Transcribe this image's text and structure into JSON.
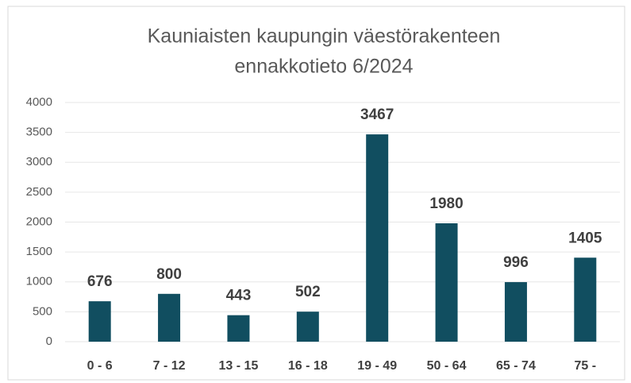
{
  "chart_data": {
    "type": "bar",
    "title": [
      "Kauniaisten kaupungin väestörakenteen",
      "ennakkotieto 6/2024"
    ],
    "categories": [
      "0 - 6",
      "7 - 12",
      "13 - 15",
      "16 - 18",
      "19 - 49",
      "50 - 64",
      "65 - 74",
      "75 -"
    ],
    "values": [
      676,
      800,
      443,
      502,
      3467,
      1980,
      996,
      1405
    ],
    "color": "#114e60",
    "ylim": [
      0,
      4000
    ],
    "yticks": [
      0,
      500,
      1000,
      1500,
      2000,
      2500,
      3000,
      3500,
      4000
    ],
    "grid": true
  }
}
